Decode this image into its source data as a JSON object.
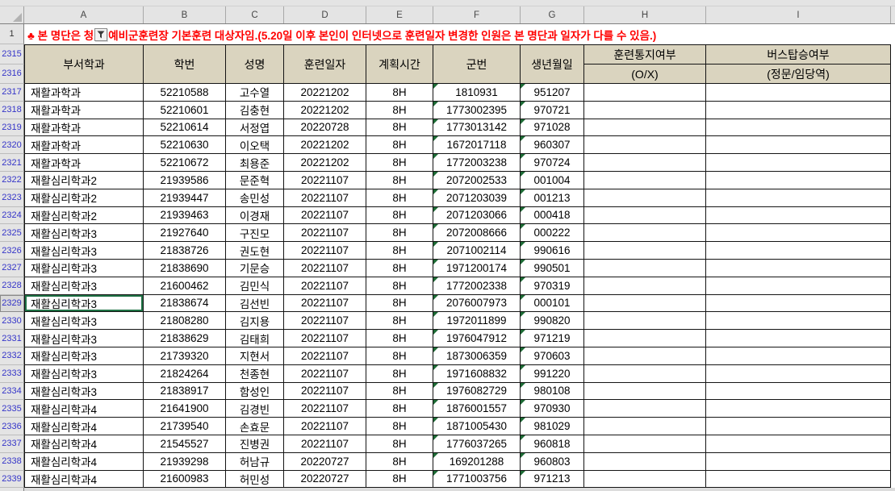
{
  "sheet": {
    "column_letters": [
      "A",
      "B",
      "C",
      "D",
      "E",
      "F",
      "G",
      "H",
      "I"
    ],
    "notice_row_number": "1",
    "header_row_numbers": [
      "2315",
      "2316"
    ],
    "active_cell_row": "2329"
  },
  "notice": {
    "text_before_filter": "♣ 본 명단은 청",
    "text_after_filter": "예비군훈련장 기본훈련 대상자임.(5.20일 이후 본인이 인터넷으로 훈련일자 변경한 인원은 본 명단과 일자가 다를 수 있음.)"
  },
  "headers": {
    "dept": "부서학과",
    "student_id": "학번",
    "name": "성명",
    "training_date": "훈련일자",
    "planned_time": "계획시간",
    "military_id": "군번",
    "birth_date": "생년월일",
    "notify_title": "훈련통지여부",
    "notify_sub": "(O/X)",
    "bus_title": "버스탑승여부",
    "bus_sub": "(정문/임당역)"
  },
  "rows": [
    {
      "row": "2317",
      "dept": "재활과학과",
      "student_id": "52210588",
      "name": "고수열",
      "date": "20221202",
      "hours": "8H",
      "military_id": "1810931",
      "birth": "951207",
      "notify": "",
      "bus": ""
    },
    {
      "row": "2318",
      "dept": "재활과학과",
      "student_id": "52210601",
      "name": "김충현",
      "date": "20221202",
      "hours": "8H",
      "military_id": "1773002395",
      "birth": "970721",
      "notify": "",
      "bus": ""
    },
    {
      "row": "2319",
      "dept": "재활과학과",
      "student_id": "52210614",
      "name": "서정엽",
      "date": "20220728",
      "hours": "8H",
      "military_id": "1773013142",
      "birth": "971028",
      "notify": "",
      "bus": ""
    },
    {
      "row": "2320",
      "dept": "재활과학과",
      "student_id": "52210630",
      "name": "이오택",
      "date": "20221202",
      "hours": "8H",
      "military_id": "1672017118",
      "birth": "960307",
      "notify": "",
      "bus": ""
    },
    {
      "row": "2321",
      "dept": "재활과학과",
      "student_id": "52210672",
      "name": "최용준",
      "date": "20221202",
      "hours": "8H",
      "military_id": "1772003238",
      "birth": "970724",
      "notify": "",
      "bus": ""
    },
    {
      "row": "2322",
      "dept": "재활심리학과2",
      "student_id": "21939586",
      "name": "문준혁",
      "date": "20221107",
      "hours": "8H",
      "military_id": "2072002533",
      "birth": "001004",
      "notify": "",
      "bus": ""
    },
    {
      "row": "2323",
      "dept": "재활심리학과2",
      "student_id": "21939447",
      "name": "송민성",
      "date": "20221107",
      "hours": "8H",
      "military_id": "2071203039",
      "birth": "001213",
      "notify": "",
      "bus": ""
    },
    {
      "row": "2324",
      "dept": "재활심리학과2",
      "student_id": "21939463",
      "name": "이경재",
      "date": "20221107",
      "hours": "8H",
      "military_id": "2071203066",
      "birth": "000418",
      "notify": "",
      "bus": ""
    },
    {
      "row": "2325",
      "dept": "재활심리학과3",
      "student_id": "21927640",
      "name": "구진모",
      "date": "20221107",
      "hours": "8H",
      "military_id": "2072008666",
      "birth": "000222",
      "notify": "",
      "bus": ""
    },
    {
      "row": "2326",
      "dept": "재활심리학과3",
      "student_id": "21838726",
      "name": "권도현",
      "date": "20221107",
      "hours": "8H",
      "military_id": "2071002114",
      "birth": "990616",
      "notify": "",
      "bus": ""
    },
    {
      "row": "2327",
      "dept": "재활심리학과3",
      "student_id": "21838690",
      "name": "기문승",
      "date": "20221107",
      "hours": "8H",
      "military_id": "1971200174",
      "birth": "990501",
      "notify": "",
      "bus": ""
    },
    {
      "row": "2328",
      "dept": "재활심리학과3",
      "student_id": "21600462",
      "name": "김민식",
      "date": "20221107",
      "hours": "8H",
      "military_id": "1772002338",
      "birth": "970319",
      "notify": "",
      "bus": ""
    },
    {
      "row": "2329",
      "dept": "재활심리학과3",
      "student_id": "21838674",
      "name": "김선빈",
      "date": "20221107",
      "hours": "8H",
      "military_id": "2076007973",
      "birth": "000101",
      "notify": "",
      "bus": ""
    },
    {
      "row": "2330",
      "dept": "재활심리학과3",
      "student_id": "21808280",
      "name": "김지용",
      "date": "20221107",
      "hours": "8H",
      "military_id": "1972011899",
      "birth": "990820",
      "notify": "",
      "bus": ""
    },
    {
      "row": "2331",
      "dept": "재활심리학과3",
      "student_id": "21838629",
      "name": "김태희",
      "date": "20221107",
      "hours": "8H",
      "military_id": "1976047912",
      "birth": "971219",
      "notify": "",
      "bus": ""
    },
    {
      "row": "2332",
      "dept": "재활심리학과3",
      "student_id": "21739320",
      "name": "지현서",
      "date": "20221107",
      "hours": "8H",
      "military_id": "1873006359",
      "birth": "970603",
      "notify": "",
      "bus": ""
    },
    {
      "row": "2333",
      "dept": "재활심리학과3",
      "student_id": "21824264",
      "name": "천종현",
      "date": "20221107",
      "hours": "8H",
      "military_id": "1971608832",
      "birth": "991220",
      "notify": "",
      "bus": ""
    },
    {
      "row": "2334",
      "dept": "재활심리학과3",
      "student_id": "21838917",
      "name": "함성인",
      "date": "20221107",
      "hours": "8H",
      "military_id": "1976082729",
      "birth": "980108",
      "notify": "",
      "bus": ""
    },
    {
      "row": "2335",
      "dept": "재활심리학과4",
      "student_id": "21641900",
      "name": "김경빈",
      "date": "20221107",
      "hours": "8H",
      "military_id": "1876001557",
      "birth": "970930",
      "notify": "",
      "bus": ""
    },
    {
      "row": "2336",
      "dept": "재활심리학과4",
      "student_id": "21739540",
      "name": "손효문",
      "date": "20221107",
      "hours": "8H",
      "military_id": "1871005430",
      "birth": "981029",
      "notify": "",
      "bus": ""
    },
    {
      "row": "2337",
      "dept": "재활심리학과4",
      "student_id": "21545527",
      "name": "진병권",
      "date": "20221107",
      "hours": "8H",
      "military_id": "1776037265",
      "birth": "960818",
      "notify": "",
      "bus": ""
    },
    {
      "row": "2338",
      "dept": "재활심리학과4",
      "student_id": "21939298",
      "name": "허남규",
      "date": "20220727",
      "hours": "8H",
      "military_id": "169201288",
      "birth": "960803",
      "notify": "",
      "bus": ""
    },
    {
      "row": "2339",
      "dept": "재활심리학과4",
      "student_id": "21600983",
      "name": "허민성",
      "date": "20220727",
      "hours": "8H",
      "military_id": "1771003756",
      "birth": "971213",
      "notify": "",
      "bus": ""
    }
  ],
  "colors": {
    "notice_red": "#ff0000",
    "header_fill": "#dad4bf",
    "row_number_blue": "#3434c8",
    "error_triangle_green": "#1d6b35",
    "gridline_black": "#141414"
  }
}
